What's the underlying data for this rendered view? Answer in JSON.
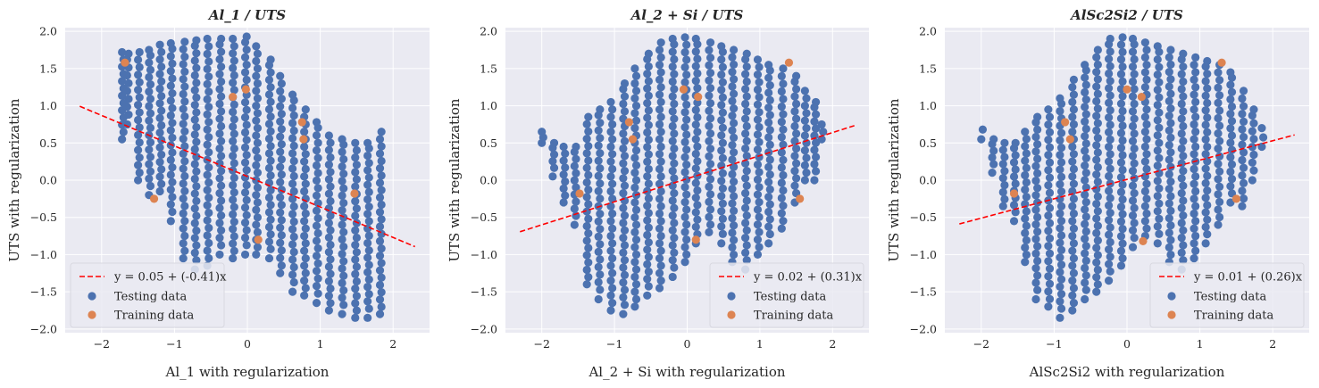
{
  "colors": {
    "testing": "#4c72b0",
    "training": "#dd8452",
    "fit": "#ff0000",
    "panel_bg": "#eaeaf2",
    "grid": "#ffffff"
  },
  "chart_data": [
    {
      "type": "scatter",
      "title": "Al_1 / UTS",
      "xlabel": "Al_1 with regularization",
      "ylabel": "UTS with regularization",
      "xlim": [
        -2.5,
        2.5
      ],
      "ylim": [
        -2.05,
        2.05
      ],
      "xticks": [
        -2,
        -1,
        0,
        1,
        2
      ],
      "yticks": [
        -2.0,
        -1.5,
        -1.0,
        -0.5,
        0.0,
        0.5,
        1.0,
        1.5,
        2.0
      ],
      "xtick_labels": [
        "−2",
        "−1",
        "0",
        "1",
        "2"
      ],
      "ytick_labels": [
        "−2.0",
        "−1.5",
        "−1.0",
        "−0.5",
        "0.0",
        "0.5",
        "1.0",
        "1.5",
        "2.0"
      ],
      "legend": {
        "location": "lower left",
        "entries": [
          "y = 0.05 + (-0.41)x",
          "Testing data",
          "Training data"
        ]
      },
      "fit_line": {
        "intercept": 0.05,
        "slope": -0.41,
        "x_range": [
          -2.3,
          2.3
        ]
      },
      "testing_data": {
        "columns": [
          {
            "x": -1.72,
            "ymin": 0.55,
            "ymax": 1.72
          },
          {
            "x": -1.65,
            "ymin": 0.75,
            "ymax": 1.7
          },
          {
            "x": -1.5,
            "ymin": 0.0,
            "ymax": 1.72
          },
          {
            "x": -1.35,
            "ymin": -0.2,
            "ymax": 1.75
          },
          {
            "x": -1.2,
            "ymin": -0.15,
            "ymax": 1.82
          },
          {
            "x": -1.05,
            "ymin": -0.55,
            "ymax": 1.84
          },
          {
            "x": -0.88,
            "ymin": -1.05,
            "ymax": 1.86
          },
          {
            "x": -0.72,
            "ymin": -1.2,
            "ymax": 1.88
          },
          {
            "x": -0.55,
            "ymin": -1.15,
            "ymax": 1.9
          },
          {
            "x": -0.38,
            "ymin": -1.0,
            "ymax": 1.9
          },
          {
            "x": -0.2,
            "ymin": -1.05,
            "ymax": 1.9
          },
          {
            "x": -0.03,
            "ymin": -1.0,
            "ymax": 1.93
          },
          {
            "x": 0.12,
            "ymin": -1.0,
            "ymax": 1.8
          },
          {
            "x": 0.3,
            "ymin": -1.05,
            "ymax": 1.62
          },
          {
            "x": 0.45,
            "ymin": -1.25,
            "ymax": 1.4
          },
          {
            "x": 0.62,
            "ymin": -1.5,
            "ymax": 1.15
          },
          {
            "x": 0.78,
            "ymin": -1.55,
            "ymax": 0.95
          },
          {
            "x": 0.95,
            "ymin": -1.65,
            "ymax": 0.78
          },
          {
            "x": 1.12,
            "ymin": -1.75,
            "ymax": 0.6
          },
          {
            "x": 1.3,
            "ymin": -1.8,
            "ymax": 0.55
          },
          {
            "x": 1.48,
            "ymin": -1.85,
            "ymax": 0.5
          },
          {
            "x": 1.65,
            "ymin": -1.85,
            "ymax": 0.5
          },
          {
            "x": 1.82,
            "ymin": -1.8,
            "ymax": 0.65
          }
        ]
      },
      "training_data": [
        {
          "x": -1.68,
          "y": 1.58
        },
        {
          "x": -0.2,
          "y": 1.12
        },
        {
          "x": -0.02,
          "y": 1.22
        },
        {
          "x": 0.75,
          "y": 0.78
        },
        {
          "x": 0.77,
          "y": 0.55
        },
        {
          "x": -1.28,
          "y": -0.25
        },
        {
          "x": 1.47,
          "y": -0.18
        },
        {
          "x": 0.15,
          "y": -0.8
        }
      ]
    },
    {
      "type": "scatter",
      "title": "Al_2 + Si / UTS",
      "xlabel": "Al_2 + Si with regularization",
      "ylabel": "UTS with regularization",
      "xlim": [
        -2.5,
        2.5
      ],
      "ylim": [
        -2.05,
        2.05
      ],
      "xticks": [
        -2,
        -1,
        0,
        1,
        2
      ],
      "yticks": [
        -2.0,
        -1.5,
        -1.0,
        -0.5,
        0.0,
        0.5,
        1.0,
        1.5,
        2.0
      ],
      "xtick_labels": [
        "−2",
        "−1",
        "0",
        "1",
        "2"
      ],
      "ytick_labels": [
        "−2.0",
        "−1.5",
        "−1.0",
        "−0.5",
        "0.0",
        "0.5",
        "1.0",
        "1.5",
        "2.0"
      ],
      "legend": {
        "location": "lower right",
        "entries": [
          "y = 0.02 + (0.31)x",
          "Testing data",
          "Training data"
        ]
      },
      "fit_line": {
        "intercept": 0.02,
        "slope": 0.31,
        "x_range": [
          -2.3,
          2.3
        ]
      },
      "testing_data": {
        "columns": [
          {
            "x": -2.0,
            "ymin": 0.5,
            "ymax": 0.65
          },
          {
            "x": -1.85,
            "ymin": 0.05,
            "ymax": 0.5
          },
          {
            "x": -1.7,
            "ymin": -0.3,
            "ymax": 0.45
          },
          {
            "x": -1.55,
            "ymin": -0.6,
            "ymax": 0.45
          },
          {
            "x": -1.38,
            "ymin": -1.4,
            "ymax": 0.85
          },
          {
            "x": -1.22,
            "ymin": -1.6,
            "ymax": 0.95
          },
          {
            "x": -1.05,
            "ymin": -1.75,
            "ymax": 1.05
          },
          {
            "x": -0.88,
            "ymin": -1.8,
            "ymax": 1.3
          },
          {
            "x": -0.72,
            "ymin": -1.7,
            "ymax": 1.5
          },
          {
            "x": -0.55,
            "ymin": -1.55,
            "ymax": 1.7
          },
          {
            "x": -0.38,
            "ymin": -1.45,
            "ymax": 1.85
          },
          {
            "x": -0.2,
            "ymin": -1.3,
            "ymax": 1.9
          },
          {
            "x": -0.03,
            "ymin": -1.1,
            "ymax": 1.92
          },
          {
            "x": 0.12,
            "ymin": -0.85,
            "ymax": 1.9
          },
          {
            "x": 0.3,
            "ymin": -0.7,
            "ymax": 1.85
          },
          {
            "x": 0.47,
            "ymin": -0.85,
            "ymax": 1.8
          },
          {
            "x": 0.62,
            "ymin": -1.1,
            "ymax": 1.75
          },
          {
            "x": 0.8,
            "ymin": -1.2,
            "ymax": 1.7
          },
          {
            "x": 0.97,
            "ymin": -1.0,
            "ymax": 1.62
          },
          {
            "x": 1.12,
            "ymin": -0.85,
            "ymax": 1.55
          },
          {
            "x": 1.3,
            "ymin": -0.65,
            "ymax": 1.5
          },
          {
            "x": 1.48,
            "ymin": -0.3,
            "ymax": 1.4
          },
          {
            "x": 1.62,
            "ymin": 0.0,
            "ymax": 1.2
          },
          {
            "x": 1.75,
            "ymin": 0.0,
            "ymax": 1.05
          },
          {
            "x": 1.85,
            "ymin": 0.55,
            "ymax": 0.75
          }
        ]
      },
      "training_data": [
        {
          "x": 1.4,
          "y": 1.58
        },
        {
          "x": -0.05,
          "y": 1.22
        },
        {
          "x": 0.15,
          "y": 1.12
        },
        {
          "x": -0.8,
          "y": 0.78
        },
        {
          "x": -0.75,
          "y": 0.55
        },
        {
          "x": -1.48,
          "y": -0.18
        },
        {
          "x": 1.55,
          "y": -0.25
        },
        {
          "x": 0.12,
          "y": -0.8
        }
      ]
    },
    {
      "type": "scatter",
      "title": "AlSc2Si2 / UTS",
      "xlabel": "AlSc2Si2 with regularization",
      "ylabel": "UTS with regularization",
      "xlim": [
        -2.5,
        2.5
      ],
      "ylim": [
        -2.05,
        2.05
      ],
      "xticks": [
        -2,
        -1,
        0,
        1,
        2
      ],
      "yticks": [
        -2.0,
        -1.5,
        -1.0,
        -0.5,
        0.0,
        0.5,
        1.0,
        1.5,
        2.0
      ],
      "xtick_labels": [
        "−2",
        "−1",
        "0",
        "1",
        "2"
      ],
      "ytick_labels": [
        "−2.0",
        "−1.5",
        "−1.0",
        "−0.5",
        "0.0",
        "0.5",
        "1.0",
        "1.5",
        "2.0"
      ],
      "legend": {
        "location": "lower right",
        "entries": [
          "y = 0.01 + (0.26)x",
          "Testing data",
          "Training data"
        ]
      },
      "fit_line": {
        "intercept": 0.01,
        "slope": 0.26,
        "x_range": [
          -2.3,
          2.3
        ]
      },
      "testing_data": {
        "columns": [
          {
            "x": -2.0,
            "ymin": 0.55,
            "ymax": 0.68
          },
          {
            "x": -1.85,
            "ymin": 0.1,
            "ymax": 0.55
          },
          {
            "x": -1.7,
            "ymin": -0.35,
            "ymax": 0.5
          },
          {
            "x": -1.55,
            "ymin": -0.55,
            "ymax": 0.5
          },
          {
            "x": -1.4,
            "ymin": -1.1,
            "ymax": 0.65
          },
          {
            "x": -1.25,
            "ymin": -1.6,
            "ymax": 0.85
          },
          {
            "x": -1.08,
            "ymin": -1.7,
            "ymax": 0.95
          },
          {
            "x": -0.92,
            "ymin": -1.85,
            "ymax": 1.1
          },
          {
            "x": -0.75,
            "ymin": -1.75,
            "ymax": 1.35
          },
          {
            "x": -0.58,
            "ymin": -1.6,
            "ymax": 1.55
          },
          {
            "x": -0.42,
            "ymin": -1.5,
            "ymax": 1.75
          },
          {
            "x": -0.25,
            "ymin": -1.35,
            "ymax": 1.9
          },
          {
            "x": -0.08,
            "ymin": -1.15,
            "ymax": 1.92
          },
          {
            "x": 0.08,
            "ymin": -0.9,
            "ymax": 1.9
          },
          {
            "x": 0.25,
            "ymin": -0.75,
            "ymax": 1.85
          },
          {
            "x": 0.42,
            "ymin": -0.85,
            "ymax": 1.8
          },
          {
            "x": 0.58,
            "ymin": -1.1,
            "ymax": 1.75
          },
          {
            "x": 0.75,
            "ymin": -1.2,
            "ymax": 1.7
          },
          {
            "x": 0.92,
            "ymin": -1.05,
            "ymax": 1.65
          },
          {
            "x": 1.08,
            "ymin": -0.85,
            "ymax": 1.6
          },
          {
            "x": 1.25,
            "ymin": -0.6,
            "ymax": 1.55
          },
          {
            "x": 1.42,
            "ymin": -0.3,
            "ymax": 1.45
          },
          {
            "x": 1.58,
            "ymin": -0.35,
            "ymax": 1.2
          },
          {
            "x": 1.72,
            "ymin": 0.0,
            "ymax": 0.95
          },
          {
            "x": 1.85,
            "ymin": 0.45,
            "ymax": 0.7
          }
        ]
      },
      "training_data": [
        {
          "x": 1.3,
          "y": 1.58
        },
        {
          "x": 0.0,
          "y": 1.22
        },
        {
          "x": 0.2,
          "y": 1.12
        },
        {
          "x": -0.85,
          "y": 0.78
        },
        {
          "x": -0.78,
          "y": 0.55
        },
        {
          "x": -1.55,
          "y": -0.18
        },
        {
          "x": 1.5,
          "y": -0.25
        },
        {
          "x": 0.22,
          "y": -0.82
        }
      ]
    }
  ]
}
